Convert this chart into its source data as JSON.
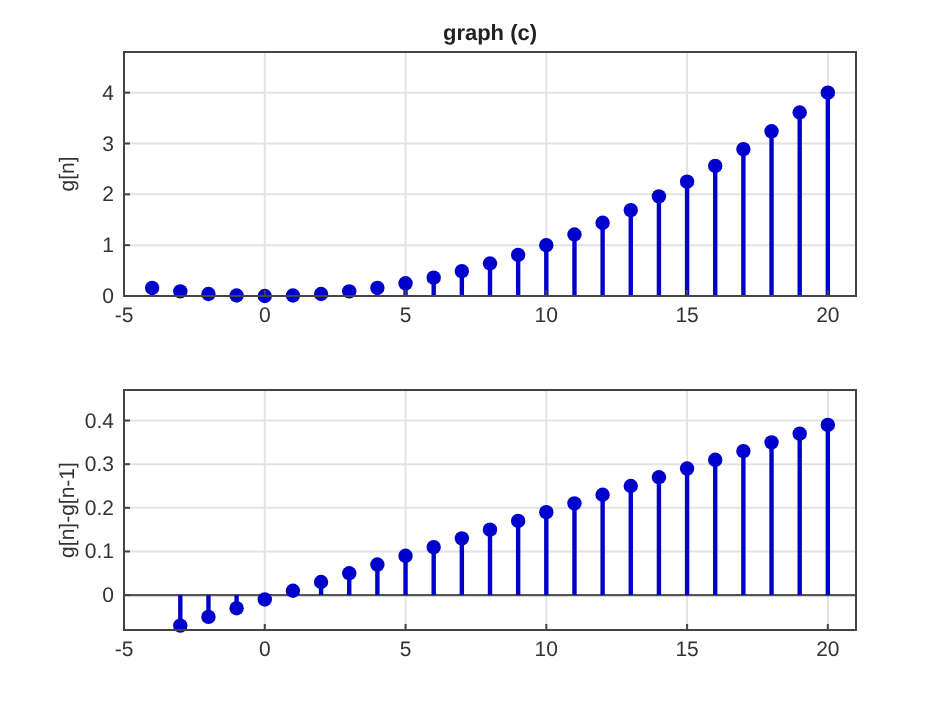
{
  "chart_data": [
    {
      "type": "lollipop",
      "title": "graph (c)",
      "ylabel": "g[n]",
      "x": [
        -4,
        -3,
        -2,
        -1,
        0,
        1,
        2,
        3,
        4,
        5,
        6,
        7,
        8,
        9,
        10,
        11,
        12,
        13,
        14,
        15,
        16,
        17,
        18,
        19,
        20
      ],
      "series": [
        {
          "color": "#0000cc",
          "values": [
            0.16,
            0.09,
            0.04,
            0.01,
            0,
            0.01,
            0.04,
            0.09,
            0.16,
            0.25,
            0.36,
            0.49,
            0.64,
            0.81,
            1,
            1.21,
            1.44,
            1.69,
            1.96,
            2.25,
            2.56,
            2.89,
            3.24,
            3.61,
            4
          ]
        }
      ],
      "xlim": [
        -5,
        21
      ],
      "xticks": [
        -5,
        0,
        5,
        10,
        15,
        20
      ],
      "ylim": [
        0,
        4.8
      ],
      "yticks": [
        0,
        1,
        2,
        3,
        4
      ],
      "grid": true,
      "marker": "circle"
    },
    {
      "type": "lollipop",
      "ylabel": "g[n]-g[n-1]",
      "x": [
        -3,
        -2,
        -1,
        0,
        1,
        2,
        3,
        4,
        5,
        6,
        7,
        8,
        9,
        10,
        11,
        12,
        13,
        14,
        15,
        16,
        17,
        18,
        19,
        20
      ],
      "series": [
        {
          "color": "#0000cc",
          "values": [
            -0.07,
            -0.05,
            -0.03,
            -0.01,
            0.01,
            0.03,
            0.05,
            0.07,
            0.09,
            0.11,
            0.13,
            0.15,
            0.17,
            0.19,
            0.21,
            0.23,
            0.25,
            0.27,
            0.29,
            0.31,
            0.33,
            0.35,
            0.37,
            0.39
          ]
        }
      ],
      "xlim": [
        -5,
        21
      ],
      "xticks": [
        -5,
        0,
        5,
        10,
        15,
        20
      ],
      "ylim": [
        -0.08,
        0.47
      ],
      "yticks": [
        0,
        0.1,
        0.2,
        0.3,
        0.4
      ],
      "grid": true,
      "marker": "circle"
    }
  ]
}
